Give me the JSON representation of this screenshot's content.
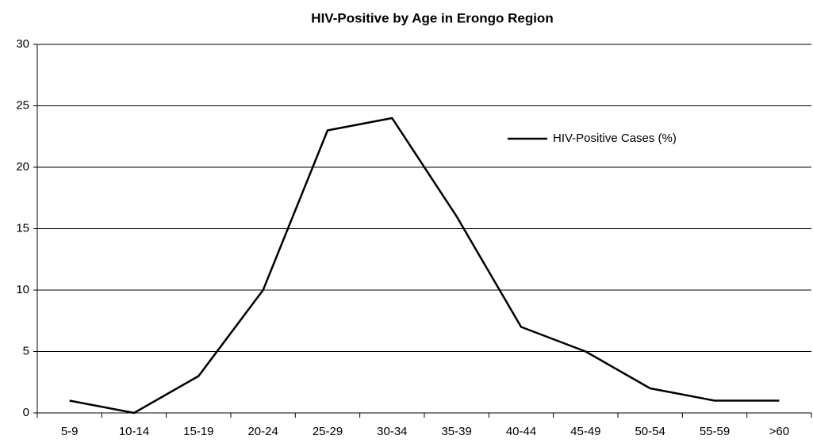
{
  "chart_data": {
    "type": "line",
    "title": "HIV-Positive by Age in Erongo Region",
    "categories": [
      "5-9",
      "10-14",
      "15-19",
      "20-24",
      "25-29",
      "30-34",
      "35-39",
      "40-44",
      "45-49",
      "50-54",
      "55-59",
      ">60"
    ],
    "series": [
      {
        "name": "HIV-Positive Cases (%)",
        "color": "#000000",
        "values": [
          1,
          0,
          3,
          10,
          23,
          24,
          16,
          7,
          5,
          2,
          1,
          1
        ]
      }
    ],
    "ylim": [
      0,
      30
    ],
    "yticks": [
      0,
      5,
      10,
      15,
      20,
      25,
      30
    ],
    "grid": true,
    "legend": "upper right"
  }
}
